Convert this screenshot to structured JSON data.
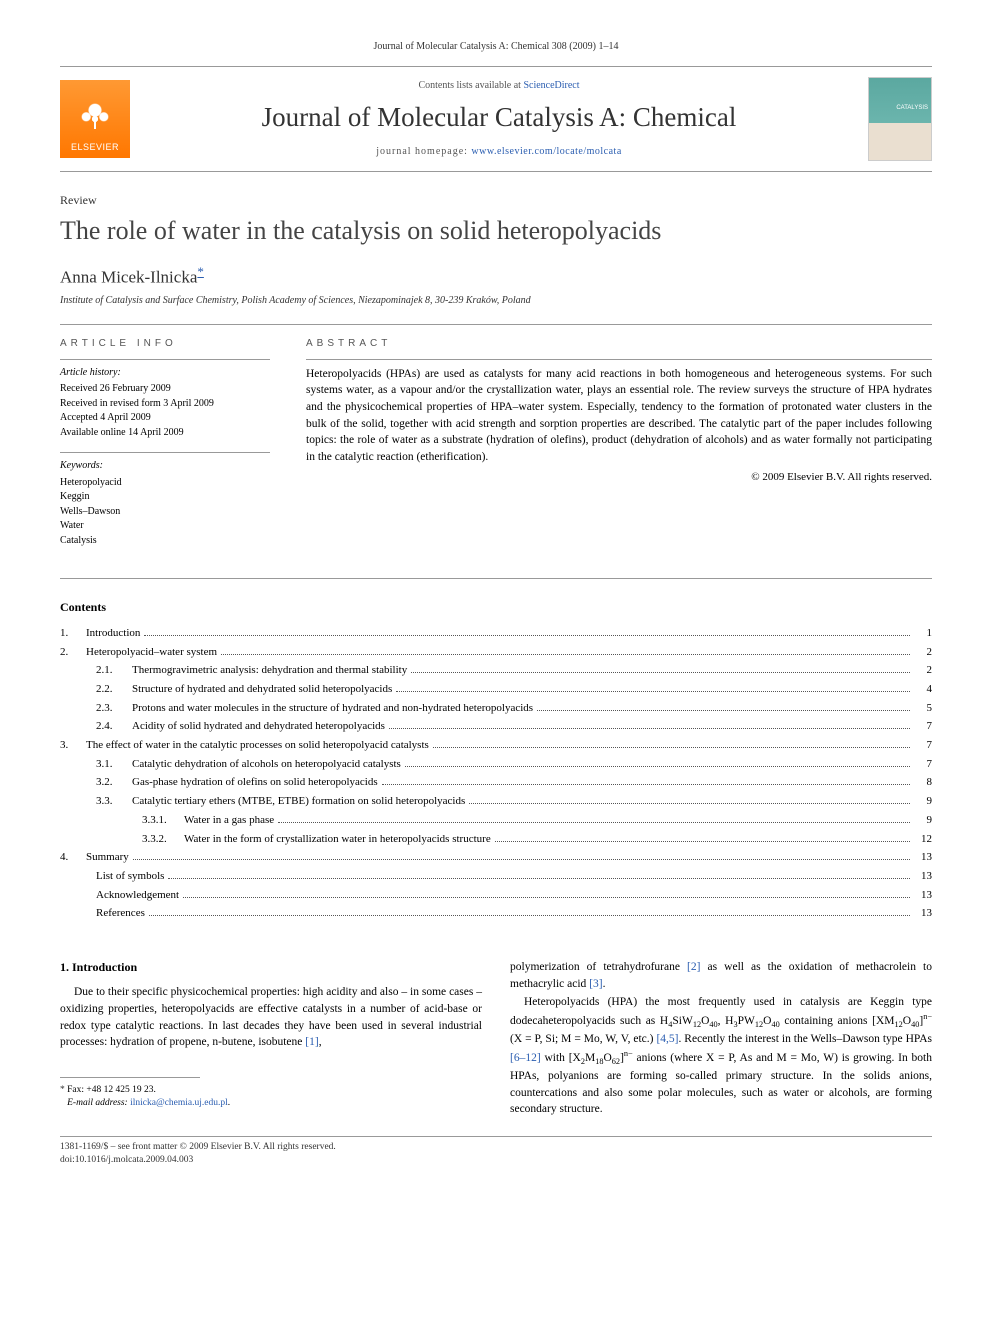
{
  "running_head": "Journal of Molecular Catalysis A: Chemical 308 (2009) 1–14",
  "masthead": {
    "publisher": "ELSEVIER",
    "contents_prefix": "Contents lists available at ",
    "contents_link": "ScienceDirect",
    "journal": "Journal of Molecular Catalysis A: Chemical",
    "homepage_prefix": "journal homepage: ",
    "homepage_url": "www.elsevier.com/locate/molcata"
  },
  "article_type": "Review",
  "title": "The role of water in the catalysis on solid heteropolyacids",
  "author": "Anna Micek-Ilnicka",
  "affiliation": "Institute of Catalysis and Surface Chemistry, Polish Academy of Sciences, Niezapominajek 8, 30-239 Kraków, Poland",
  "info_heading": "article info",
  "abstract_heading": "abstract",
  "history": {
    "heading": "Article history:",
    "lines": [
      "Received 26 February 2009",
      "Received in revised form 3 April 2009",
      "Accepted 4 April 2009",
      "Available online 14 April 2009"
    ]
  },
  "keywords": {
    "heading": "Keywords:",
    "items": [
      "Heteropolyacid",
      "Keggin",
      "Wells–Dawson",
      "Water",
      "Catalysis"
    ]
  },
  "abstract": "Heteropolyacids (HPAs) are used as catalysts for many acid reactions in both homogeneous and heterogeneous systems. For such systems water, as a vapour and/or the crystallization water, plays an essential role. The review surveys the structure of HPA hydrates and the physicochemical properties of HPA–water system. Especially, tendency to the formation of protonated water clusters in the bulk of the solid, together with acid strength and sorption properties are described. The catalytic part of the paper includes following topics: the role of water as a substrate (hydration of olefins), product (dehydration of alcohols) and as water formally not participating in the catalytic reaction (etherification).",
  "copyright": "© 2009 Elsevier B.V. All rights reserved.",
  "contents_heading": "Contents",
  "toc": [
    {
      "level": 1,
      "num": "1.",
      "label": "Introduction",
      "page": "1"
    },
    {
      "level": 1,
      "num": "2.",
      "label": "Heteropolyacid–water system",
      "page": "2"
    },
    {
      "level": 2,
      "num": "2.1.",
      "label": "Thermogravimetric analysis: dehydration and thermal stability",
      "page": "2"
    },
    {
      "level": 2,
      "num": "2.2.",
      "label": "Structure of hydrated and dehydrated solid heteropolyacids",
      "page": "4"
    },
    {
      "level": 2,
      "num": "2.3.",
      "label": "Protons and water molecules in the structure of hydrated and non-hydrated heteropolyacids",
      "page": "5"
    },
    {
      "level": 2,
      "num": "2.4.",
      "label": "Acidity of solid hydrated and dehydrated heteropolyacids",
      "page": "7"
    },
    {
      "level": 1,
      "num": "3.",
      "label": "The effect of water in the catalytic processes on solid heteropolyacid catalysts",
      "page": "7"
    },
    {
      "level": 2,
      "num": "3.1.",
      "label": "Catalytic dehydration of alcohols on heteropolyacid catalysts",
      "page": "7"
    },
    {
      "level": 2,
      "num": "3.2.",
      "label": "Gas-phase hydration of olefins on solid heteropolyacids",
      "page": "8"
    },
    {
      "level": 2,
      "num": "3.3.",
      "label": "Catalytic tertiary ethers (MTBE, ETBE) formation on solid heteropolyacids",
      "page": "9"
    },
    {
      "level": 3,
      "num": "3.3.1.",
      "label": "Water in a gas phase",
      "page": "9"
    },
    {
      "level": 3,
      "num": "3.3.2.",
      "label": "Water in the form of crystallization water in heteropolyacids structure",
      "page": "12"
    },
    {
      "level": 1,
      "num": "4.",
      "label": "Summary",
      "page": "13"
    },
    {
      "level": 0,
      "num": "",
      "label": "List of symbols",
      "page": "13"
    },
    {
      "level": 0,
      "num": "",
      "label": "Acknowledgement",
      "page": "13"
    },
    {
      "level": 0,
      "num": "",
      "label": "References",
      "page": "13"
    }
  ],
  "body": {
    "section_heading": "1.  Introduction",
    "left_para": "Due to their specific physicochemical properties: high acidity and also – in some cases – oxidizing properties, heteropolyacids are effective catalysts in a number of acid-base or redox type catalytic reactions. In last decades they have been used in several industrial processes: hydration of propene, n-butene, isobutene [1],",
    "right_para1": "polymerization of tetrahydrofurane [2] as well as the oxidation of methacrolein to methacrylic acid [3].",
    "right_para2_html": "Heteropolyacids (HPA) the most frequently used in catalysis are Keggin type dodecaheteropolyacids such as H<sub>4</sub>SiW<sub>12</sub>O<sub>40</sub>, H<sub>3</sub>PW<sub>12</sub>O<sub>40</sub> containing anions [XM<sub>12</sub>O<sub>40</sub>]<sup>n−</sup> (X = P, Si; M = Mo, W, V, etc.) <span class='ref'>[4,5]</span>. Recently the interest in the Wells–Dawson type HPAs <span class='ref'>[6–12]</span> with [X<sub>2</sub>M<sub>18</sub>O<sub>62</sub>]<sup>n−</sup> anions (where X = P, As and M = Mo, W) is growing. In both HPAs, polyanions are forming so-called primary structure. In the solids anions, countercations and also some polar molecules, such as water or alcohols, are forming secondary structure."
  },
  "footnote": {
    "fax": "Fax: +48 12 425 19 23.",
    "email_label": "E-mail address:",
    "email": "ilnicka@chemia.uj.edu.pl"
  },
  "bottom": {
    "issn": "1381-1169/$ – see front matter © 2009 Elsevier B.V. All rights reserved.",
    "doi": "doi:10.1016/j.molcata.2009.04.003"
  },
  "colors": {
    "link": "#2a5db0",
    "rule": "#999999",
    "logo_bg": "#ff7700"
  }
}
